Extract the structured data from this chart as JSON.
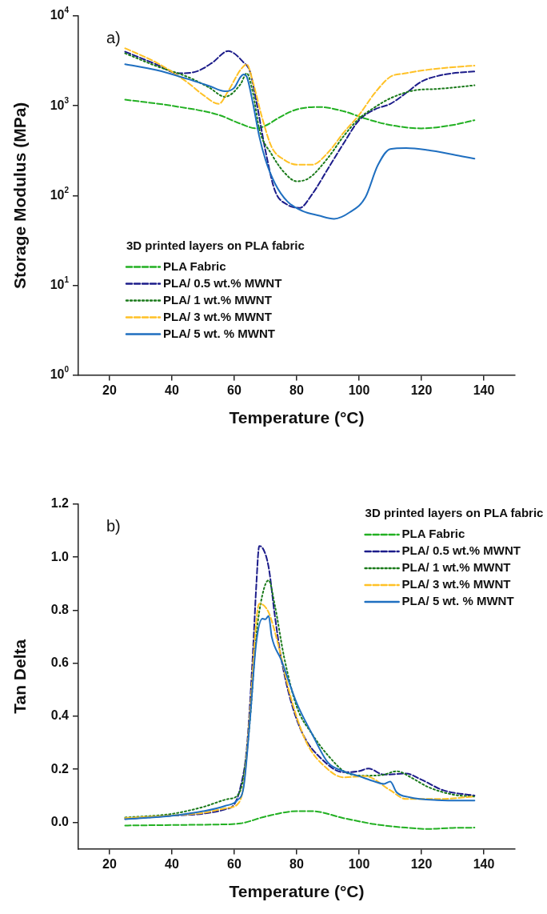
{
  "chart_data": [
    {
      "type": "line",
      "annotations": [
        "a)"
      ],
      "xlabel": "Temperature (°C)",
      "ylabel": "Storage Modulus (MPa)",
      "legend_title": "3D printed layers on PLA fabric",
      "legend": "bottom left",
      "log": "y",
      "grid": false,
      "marker": "none",
      "xlim": [
        10,
        150
      ],
      "xticks": [
        20,
        40,
        60,
        80,
        100,
        120,
        140
      ],
      "ylim": [
        1,
        10000
      ],
      "yticks": [
        {
          "value": 1,
          "label": "10$^{0}$"
        },
        {
          "value": 10,
          "label": "10$^{1}$"
        },
        {
          "value": 100,
          "label": "10$^{2}$"
        },
        {
          "value": 1000,
          "label": "10$^{3}$"
        },
        {
          "value": 10000,
          "label": "10$^{4}$"
        }
      ],
      "series": [
        {
          "name": "PLA Fabric",
          "color": "#22b022",
          "line_style": "dashed",
          "x": [
            25,
            40,
            55,
            62,
            67,
            70,
            75,
            80,
            87,
            95,
            102,
            110,
            120,
            130,
            137
          ],
          "values": [
            1170,
            1000,
            790,
            630,
            560,
            600,
            760,
            910,
            970,
            870,
            720,
            610,
            560,
            610,
            690
          ]
        },
        {
          "name": "PLA/ 0.5 wt.% MWNT",
          "color": "#1c1c8a",
          "line_style": "dashed",
          "x": [
            25,
            35,
            42,
            48,
            53,
            58,
            63,
            65,
            67,
            70,
            73,
            77,
            81,
            85,
            90,
            95,
            100,
            105,
            110,
            115,
            120,
            125,
            130,
            137
          ],
          "values": [
            4000,
            2890,
            2300,
            2420,
            3030,
            4070,
            3030,
            2420,
            1150,
            314,
            114,
            79,
            73,
            104,
            198,
            379,
            690,
            910,
            1050,
            1380,
            1860,
            2140,
            2300,
            2410
          ]
        },
        {
          "name": "PLA/ 1 wt.% MWNT",
          "color": "#1a7a1a",
          "line_style": "dotted",
          "x": [
            25,
            35,
            45,
            52,
            57,
            62,
            64,
            66,
            68,
            72,
            76,
            80,
            84,
            90,
            95,
            100,
            105,
            110,
            118,
            125,
            137
          ],
          "values": [
            3840,
            2770,
            2100,
            1590,
            1260,
            1740,
            2300,
            1380,
            550,
            287,
            181,
            144,
            157,
            262,
            456,
            720,
            960,
            1210,
            1490,
            1540,
            1690
          ]
        },
        {
          "name": "PLA/ 3 wt.% MWNT",
          "color": "#ffc125",
          "line_style": "dashed",
          "x": [
            25,
            35,
            45,
            50,
            55,
            58,
            62,
            64,
            66,
            69,
            72,
            76,
            80,
            85,
            90,
            95,
            100,
            105,
            110,
            115,
            122,
            130,
            137
          ],
          "values": [
            4370,
            3030,
            1820,
            1320,
            1050,
            1450,
            2520,
            2890,
            1820,
            720,
            345,
            250,
            221,
            221,
            300,
            500,
            790,
            1380,
            2100,
            2300,
            2520,
            2690,
            2800
          ]
        },
        {
          "name": "PLA/ 5 wt. % MWNT",
          "color": "#1f6fc0",
          "line_style": "solid",
          "x": [
            25,
            35,
            45,
            52,
            57,
            60,
            62,
            63,
            64,
            66,
            68,
            70,
            73,
            77,
            82,
            87,
            92,
            97,
            102,
            106,
            110,
            115,
            122,
            130,
            137
          ],
          "values": [
            2900,
            2500,
            1990,
            1660,
            1450,
            1590,
            2100,
            2230,
            2100,
            1050,
            456,
            250,
            137,
            86,
            67,
            60,
            55,
            65,
            95,
            217,
            330,
            338,
            321,
            287,
            257
          ]
        }
      ]
    },
    {
      "type": "line",
      "annotations": [
        "b)"
      ],
      "xlabel": "Temperature (°C)",
      "ylabel": "Tan Delta",
      "legend_title": "3D printed layers on PLA fabric",
      "legend": "top right",
      "grid": false,
      "marker": "none",
      "xlim": [
        10,
        150
      ],
      "xticks": [
        20,
        40,
        60,
        80,
        100,
        120,
        140
      ],
      "ylim": [
        -0.1,
        1.2
      ],
      "yticks": [
        {
          "value": 0,
          "label": "0.0"
        },
        {
          "value": 0.2,
          "label": "0.2"
        },
        {
          "value": 0.4,
          "label": "0.4"
        },
        {
          "value": 0.6,
          "label": "0.6"
        },
        {
          "value": 0.8,
          "label": "0.8"
        },
        {
          "value": 1,
          "label": "1.0"
        },
        {
          "value": 1.2,
          "label": "1.2"
        }
      ],
      "series": [
        {
          "name": "PLA Fabric",
          "color": "#22b022",
          "line_style": "dashed",
          "x": [
            25,
            40,
            55,
            62,
            70,
            80,
            85,
            95,
            105,
            115,
            122,
            130,
            137
          ],
          "values": [
            -0.012,
            -0.01,
            -0.008,
            -0.004,
            0.022,
            0.042,
            0.042,
            0.016,
            -0.007,
            -0.02,
            -0.025,
            -0.021,
            -0.02
          ]
        },
        {
          "name": "PLA/ 0.5 wt.% MWNT",
          "color": "#1c1c8a",
          "line_style": "dashed",
          "x": [
            25,
            40,
            50,
            57,
            60,
            62,
            64,
            66,
            67,
            68,
            69,
            71,
            73,
            75,
            78,
            82,
            88,
            95,
            100,
            103,
            108,
            115,
            120,
            127,
            137
          ],
          "values": [
            0.013,
            0.025,
            0.033,
            0.049,
            0.068,
            0.134,
            0.279,
            0.647,
            0.884,
            1.042,
            1.036,
            0.963,
            0.779,
            0.621,
            0.463,
            0.332,
            0.239,
            0.189,
            0.193,
            0.203,
            0.18,
            0.184,
            0.161,
            0.121,
            0.101
          ]
        },
        {
          "name": "PLA/ 1 wt.% MWNT",
          "color": "#1a7a1a",
          "line_style": "dotted",
          "x": [
            25,
            40,
            50,
            58,
            61,
            63,
            65,
            67,
            69,
            71,
            73,
            76,
            80,
            85,
            90,
            96,
            102,
            108,
            112,
            117,
            122,
            130,
            137
          ],
          "values": [
            0.018,
            0.032,
            0.058,
            0.088,
            0.101,
            0.174,
            0.384,
            0.7,
            0.858,
            0.913,
            0.818,
            0.621,
            0.437,
            0.332,
            0.253,
            0.187,
            0.176,
            0.18,
            0.193,
            0.167,
            0.134,
            0.105,
            0.097
          ]
        },
        {
          "name": "PLA/ 3 wt.% MWNT",
          "color": "#ffc125",
          "line_style": "dashed",
          "x": [
            25,
            40,
            50,
            58,
            61,
            63,
            65,
            67,
            68,
            71,
            74,
            78,
            83,
            90,
            95,
            102,
            110,
            115,
            125,
            137
          ],
          "values": [
            0.016,
            0.026,
            0.036,
            0.055,
            0.068,
            0.141,
            0.41,
            0.753,
            0.825,
            0.792,
            0.674,
            0.476,
            0.305,
            0.2,
            0.17,
            0.174,
            0.121,
            0.088,
            0.088,
            0.097
          ]
        },
        {
          "name": "PLA/ 5 wt. % MWNT",
          "color": "#1f6fc0",
          "line_style": "solid",
          "x": [
            25,
            40,
            50,
            57,
            61,
            63,
            65,
            67,
            69,
            70,
            71,
            72,
            75,
            80,
            85,
            90,
            95,
            100,
            105,
            108,
            110,
            112,
            116,
            125,
            137
          ],
          "values": [
            0.012,
            0.025,
            0.042,
            0.062,
            0.084,
            0.134,
            0.384,
            0.674,
            0.768,
            0.766,
            0.779,
            0.7,
            0.614,
            0.45,
            0.332,
            0.226,
            0.193,
            0.174,
            0.154,
            0.145,
            0.154,
            0.114,
            0.095,
            0.084,
            0.082
          ]
        }
      ]
    }
  ]
}
